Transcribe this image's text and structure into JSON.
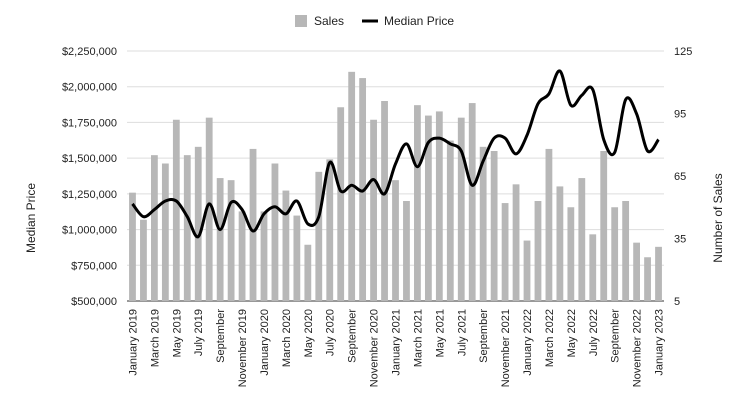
{
  "chart_data": {
    "type": "bar",
    "categories": [
      "January 2019",
      "February 2019",
      "March 2019",
      "April 2019",
      "May 2019",
      "June 2019",
      "July 2019",
      "August 2019",
      "September 2019",
      "October 2019",
      "November 2019",
      "December 2019",
      "January 2020",
      "February 2020",
      "March 2020",
      "April 2020",
      "May 2020",
      "June 2020",
      "July 2020",
      "August 2020",
      "September 2020",
      "October 2020",
      "November 2020",
      "December 2020",
      "January 2021",
      "February 2021",
      "March 2021",
      "April 2021",
      "May 2021",
      "June 2021",
      "July 2021",
      "August 2021",
      "September 2021",
      "October 2021",
      "November 2021",
      "December 2021",
      "January 2022",
      "February 2022",
      "March 2022",
      "April 2022",
      "May 2022",
      "June 2022",
      "July 2022",
      "August 2022",
      "September 2022",
      "October 2022",
      "November 2022",
      "December 2022",
      "January 2023"
    ],
    "tick_labels": [
      "January 2019",
      "",
      "March 2019",
      "",
      "May 2019",
      "",
      "July 2019",
      "",
      "September",
      "",
      "November 2019",
      "",
      "January 2020",
      "",
      "March 2020",
      "",
      "May 2020",
      "",
      "July 2020",
      "",
      "September",
      "",
      "November 2020",
      "",
      "January 2021",
      "",
      "March 2021",
      "",
      "May 2021",
      "",
      "July 2021",
      "",
      "September",
      "",
      "November 2021",
      "",
      "January 2022",
      "",
      "March 2022",
      "",
      "May 2022",
      "",
      "July 2022",
      "",
      "September",
      "",
      "November 2022",
      "",
      "January 2023"
    ],
    "series": [
      {
        "name": "Sales",
        "type": "bar",
        "axis": "right",
        "color": "#b7b7b7",
        "values": [
          57,
          44,
          75,
          71,
          92,
          75,
          79,
          93,
          64,
          63,
          48,
          78,
          48,
          71,
          58,
          46,
          32,
          67,
          73,
          98,
          115,
          112,
          92,
          101,
          63,
          53,
          99,
          94,
          96,
          82,
          93,
          100,
          79,
          77,
          52,
          61,
          34,
          53,
          78,
          60,
          50,
          64,
          37,
          77,
          50,
          53,
          33,
          26,
          31
        ]
      },
      {
        "name": "Median Price",
        "type": "line",
        "axis": "left",
        "color": "#000000",
        "values": [
          1180000,
          1090000,
          1140000,
          1200000,
          1200000,
          1090000,
          950000,
          1180000,
          1000000,
          1190000,
          1140000,
          990000,
          1110000,
          1160000,
          1110000,
          1200000,
          1040000,
          1090000,
          1470000,
          1270000,
          1310000,
          1270000,
          1350000,
          1250000,
          1460000,
          1600000,
          1440000,
          1610000,
          1640000,
          1600000,
          1550000,
          1310000,
          1480000,
          1640000,
          1640000,
          1530000,
          1660000,
          1880000,
          1950000,
          2110000,
          1870000,
          1940000,
          1980000,
          1630000,
          1540000,
          1910000,
          1810000,
          1550000,
          1630000
        ]
      }
    ],
    "left_axis": {
      "title": "Median Price",
      "min": 500000,
      "max": 2250000,
      "ticks": [
        500000,
        750000,
        1000000,
        1250000,
        1500000,
        1750000,
        2000000,
        2250000
      ],
      "tick_labels": [
        "$500,000",
        "$750,000",
        "$1,000,000",
        "$1,250,000",
        "$1,500,000",
        "$1,750,000",
        "$2,000,000",
        "$2,250,000"
      ]
    },
    "right_axis": {
      "title": "Number of Sales",
      "min": 5,
      "max": 125,
      "ticks": [
        5,
        35,
        65,
        95,
        125
      ],
      "tick_labels": [
        "5",
        "35",
        "65",
        "95",
        "125"
      ]
    },
    "legend": {
      "position": "top",
      "entries": [
        "Sales",
        "Median Price"
      ]
    },
    "grid": true
  }
}
